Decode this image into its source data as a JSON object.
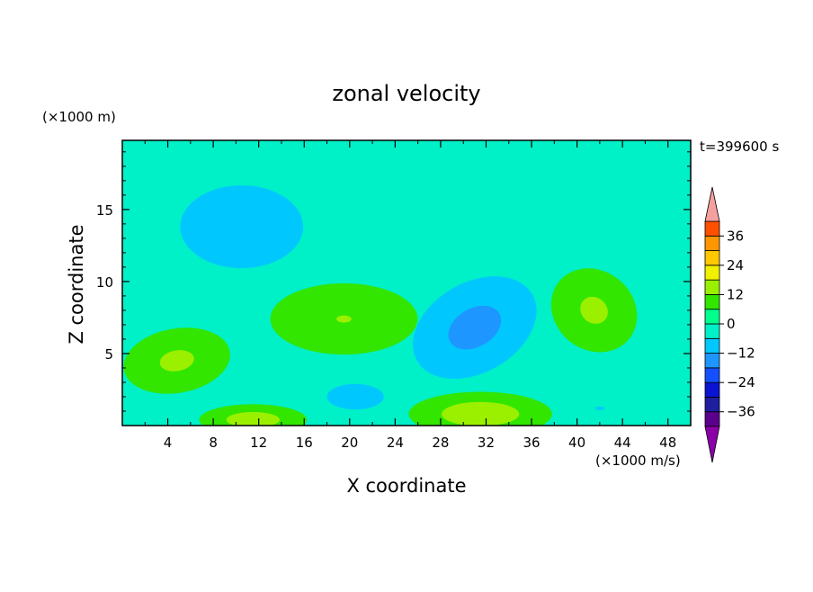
{
  "chart_data": {
    "type": "heatmap",
    "title": "zonal velocity",
    "xlabel": "X coordinate",
    "ylabel": "Z coordinate",
    "x_unit": "(×1000 m/s)",
    "y_unit": "(×1000 m)",
    "time_label": "t=399600 s",
    "xlim": [
      0,
      50
    ],
    "ylim": [
      0,
      19.8
    ],
    "x_ticks": [
      4,
      8,
      12,
      16,
      20,
      24,
      28,
      32,
      36,
      40,
      44,
      48
    ],
    "y_ticks": [
      5,
      10,
      15
    ],
    "colorbar": {
      "ticks": [
        36,
        24,
        12,
        0,
        -12,
        -24,
        -36
      ],
      "levels": [
        -42,
        -36,
        -30,
        -24,
        -18,
        -12,
        -6,
        0,
        6,
        12,
        18,
        24,
        30,
        36,
        42
      ],
      "colors": [
        "#5a008c",
        "#1e1e9e",
        "#0a14d2",
        "#1450ff",
        "#1e96ff",
        "#00c8ff",
        "#00f0c8",
        "#00ff8c",
        "#32e600",
        "#9bf000",
        "#f0f000",
        "#ffc800",
        "#ff9600",
        "#ff5000",
        "#ff1e1e"
      ],
      "under_color": "#8c00a8",
      "over_color": "#f5a0a0"
    },
    "features": [
      {
        "x": 30.5,
        "z": 7.0,
        "value": -24,
        "sx": 2.6,
        "sz": 0.9,
        "rot": -30
      },
      {
        "x": 31.0,
        "z": 6.8,
        "value": -14,
        "sx": 4.5,
        "sz": 2.4,
        "rot": -30
      },
      {
        "x": 10.5,
        "z": 13.8,
        "value": -9,
        "sx": 6.0,
        "sz": 3.2,
        "rot": 0
      },
      {
        "x": 12.0,
        "z": 13.0,
        "value": -6,
        "sx": 2.5,
        "sz": 1.0,
        "rot": 0
      },
      {
        "x": 20.5,
        "z": 2.0,
        "value": -7,
        "sx": 4.5,
        "sz": 1.6,
        "rot": 0
      },
      {
        "x": 42.0,
        "z": 1.2,
        "value": -6,
        "sx": 3.5,
        "sz": 1.0,
        "rot": 0
      },
      {
        "x": 19.5,
        "z": 7.4,
        "value": 12,
        "sx": 5.5,
        "sz": 2.1,
        "rot": 0
      },
      {
        "x": 4.8,
        "z": 4.5,
        "value": 13,
        "sx": 3.8,
        "sz": 1.8,
        "rot": -10
      },
      {
        "x": 41.5,
        "z": 8.0,
        "value": 13,
        "sx": 3.2,
        "sz": 2.2,
        "rot": 40
      },
      {
        "x": 31.5,
        "z": 0.8,
        "value": 16,
        "sx": 4.5,
        "sz": 1.1,
        "rot": 0
      },
      {
        "x": 11.5,
        "z": 0.4,
        "value": 15,
        "sx": 3.5,
        "sz": 0.8,
        "rot": 0
      },
      {
        "x": 28.0,
        "z": 15.5,
        "value": 4,
        "sx": 7.0,
        "sz": 5.5,
        "rot": 0
      },
      {
        "x": 42.0,
        "z": 12.5,
        "value": 3,
        "sx": 4.5,
        "sz": 2.5,
        "rot": 0
      },
      {
        "x": 37.0,
        "z": 4.0,
        "value": 3,
        "sx": 2.0,
        "sz": 3.0,
        "rot": 0
      },
      {
        "x": 14.0,
        "z": 4.0,
        "value": 2,
        "sx": 1.5,
        "sz": 2.5,
        "rot": 0
      },
      {
        "x": 48.5,
        "z": 1.5,
        "value": 5,
        "sx": 2.0,
        "sz": 1.5,
        "rot": 0
      }
    ]
  }
}
